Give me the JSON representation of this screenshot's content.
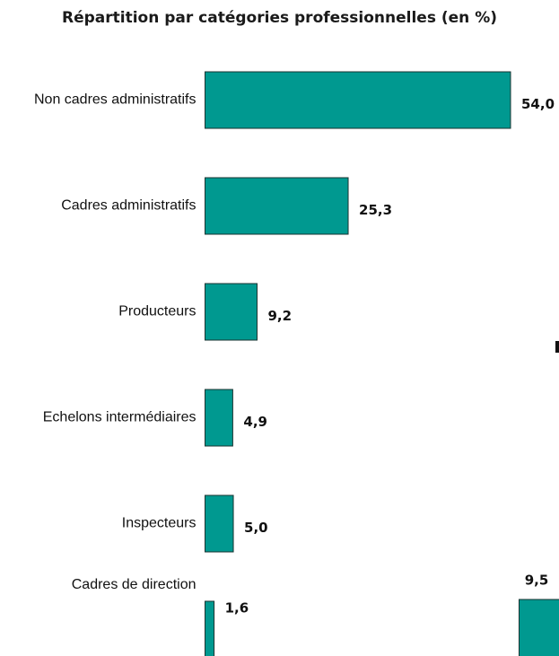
{
  "chart_data": {
    "type": "bar",
    "orientation": "horizontal",
    "title": "Répartition par catégories professionnelles (en %)",
    "categories": [
      "Non cadres administratifs",
      "Cadres administratifs",
      "Producteurs",
      "Echelons intermédiaires",
      "Inspecteurs",
      "Cadres de direction"
    ],
    "values": [
      54.0,
      25.3,
      9.2,
      4.9,
      5.0,
      1.6
    ],
    "value_labels": [
      "54,0",
      "25,3",
      "9,2",
      "4,9",
      "5,0",
      "1,6"
    ],
    "bar_color": "#009990",
    "bar_stroke": "#1a3330",
    "grid": false,
    "legend": "none"
  },
  "partial_chart": {
    "value_label": "9,5",
    "value": 9.5,
    "bar_color": "#009990"
  }
}
